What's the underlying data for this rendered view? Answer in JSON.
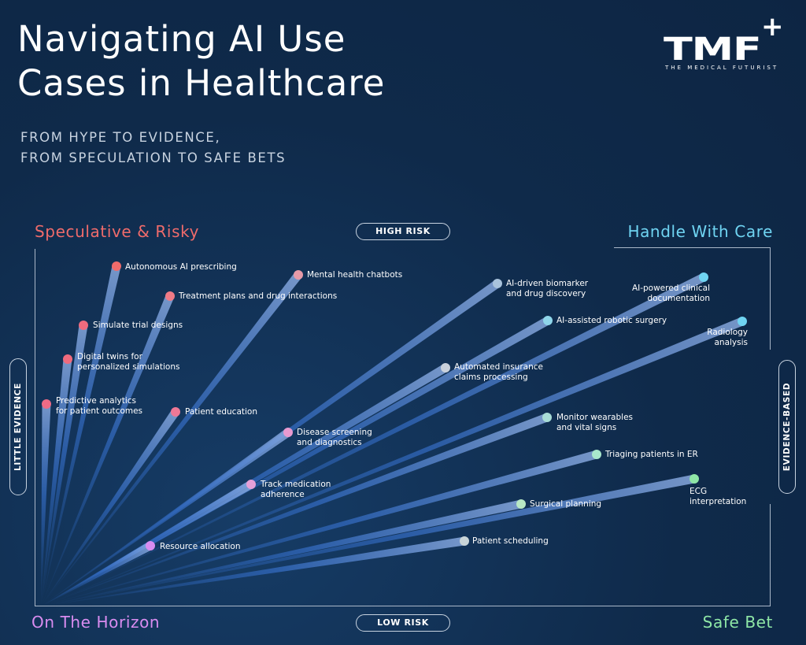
{
  "title": "Navigating AI Use Cases in Healthcare",
  "subtitle": "FROM HYPE TO EVIDENCE,\nFROM SPECULATION TO SAFE BETS",
  "logo": {
    "mark": "TMF",
    "plus": "+",
    "tagline": "THE MEDICAL FUTURIST"
  },
  "quadrants": {
    "top_left": "Speculative & Risky",
    "top_right": "Handle With Care",
    "bottom_left": "On The Horizon",
    "bottom_right": "Safe Bet"
  },
  "axes": {
    "top": "HIGH RISK",
    "bottom": "LOW RISK",
    "left": "LITTLE EVIDENCE",
    "right": "EVIDENCE-BASED"
  },
  "colors": {
    "background": "#0f2a4a",
    "speculative": "#ef6b6b",
    "handle_with_care": "#6fd4f2",
    "horizon": "#d98cf0",
    "safe_bet": "#8ee6a6"
  },
  "use_cases": [
    {
      "label": "Autonomous AI prescribing",
      "color": "#ef6b6b"
    },
    {
      "label": "Mental health chatbots",
      "color": "#e79aa8"
    },
    {
      "label": "Treatment plans and drug interactions",
      "color": "#ef7a86"
    },
    {
      "label": "Simulate trial designs",
      "color": "#ef6b7e"
    },
    {
      "label": "Digital twins for\npersonalized simulations",
      "color": "#ef6b7e"
    },
    {
      "label": "Predictive analytics\nfor patient outcomes",
      "color": "#ef6b86"
    },
    {
      "label": "Patient education",
      "color": "#ef7896"
    },
    {
      "label": "AI-driven biomarker\nand drug discovery",
      "color": "#a9c3dc"
    },
    {
      "label": "AI-powered clinical\ndocumentation",
      "color": "#6fd4f2"
    },
    {
      "label": "AI-assisted robotic surgery",
      "color": "#8fd6ea"
    },
    {
      "label": "Radiology\nanalysis",
      "color": "#6fd4f2"
    },
    {
      "label": "Automated insurance\nclaims processing",
      "color": "#c9d1dc"
    },
    {
      "label": "Disease screening\nand diagnostics",
      "color": "#e89ad0"
    },
    {
      "label": "Monitor wearables\nand vital signs",
      "color": "#a8dcd6"
    },
    {
      "label": "Triaging patients in ER",
      "color": "#a9e8cc"
    },
    {
      "label": "Track medication\nadherence",
      "color": "#e6a0d8"
    },
    {
      "label": "ECG\ninterpretation",
      "color": "#8ee6a6"
    },
    {
      "label": "Surgical planning",
      "color": "#b8e8c4"
    },
    {
      "label": "Resource allocation",
      "color": "#d98cf0"
    },
    {
      "label": "Patient scheduling",
      "color": "#c9d5d8"
    }
  ]
}
